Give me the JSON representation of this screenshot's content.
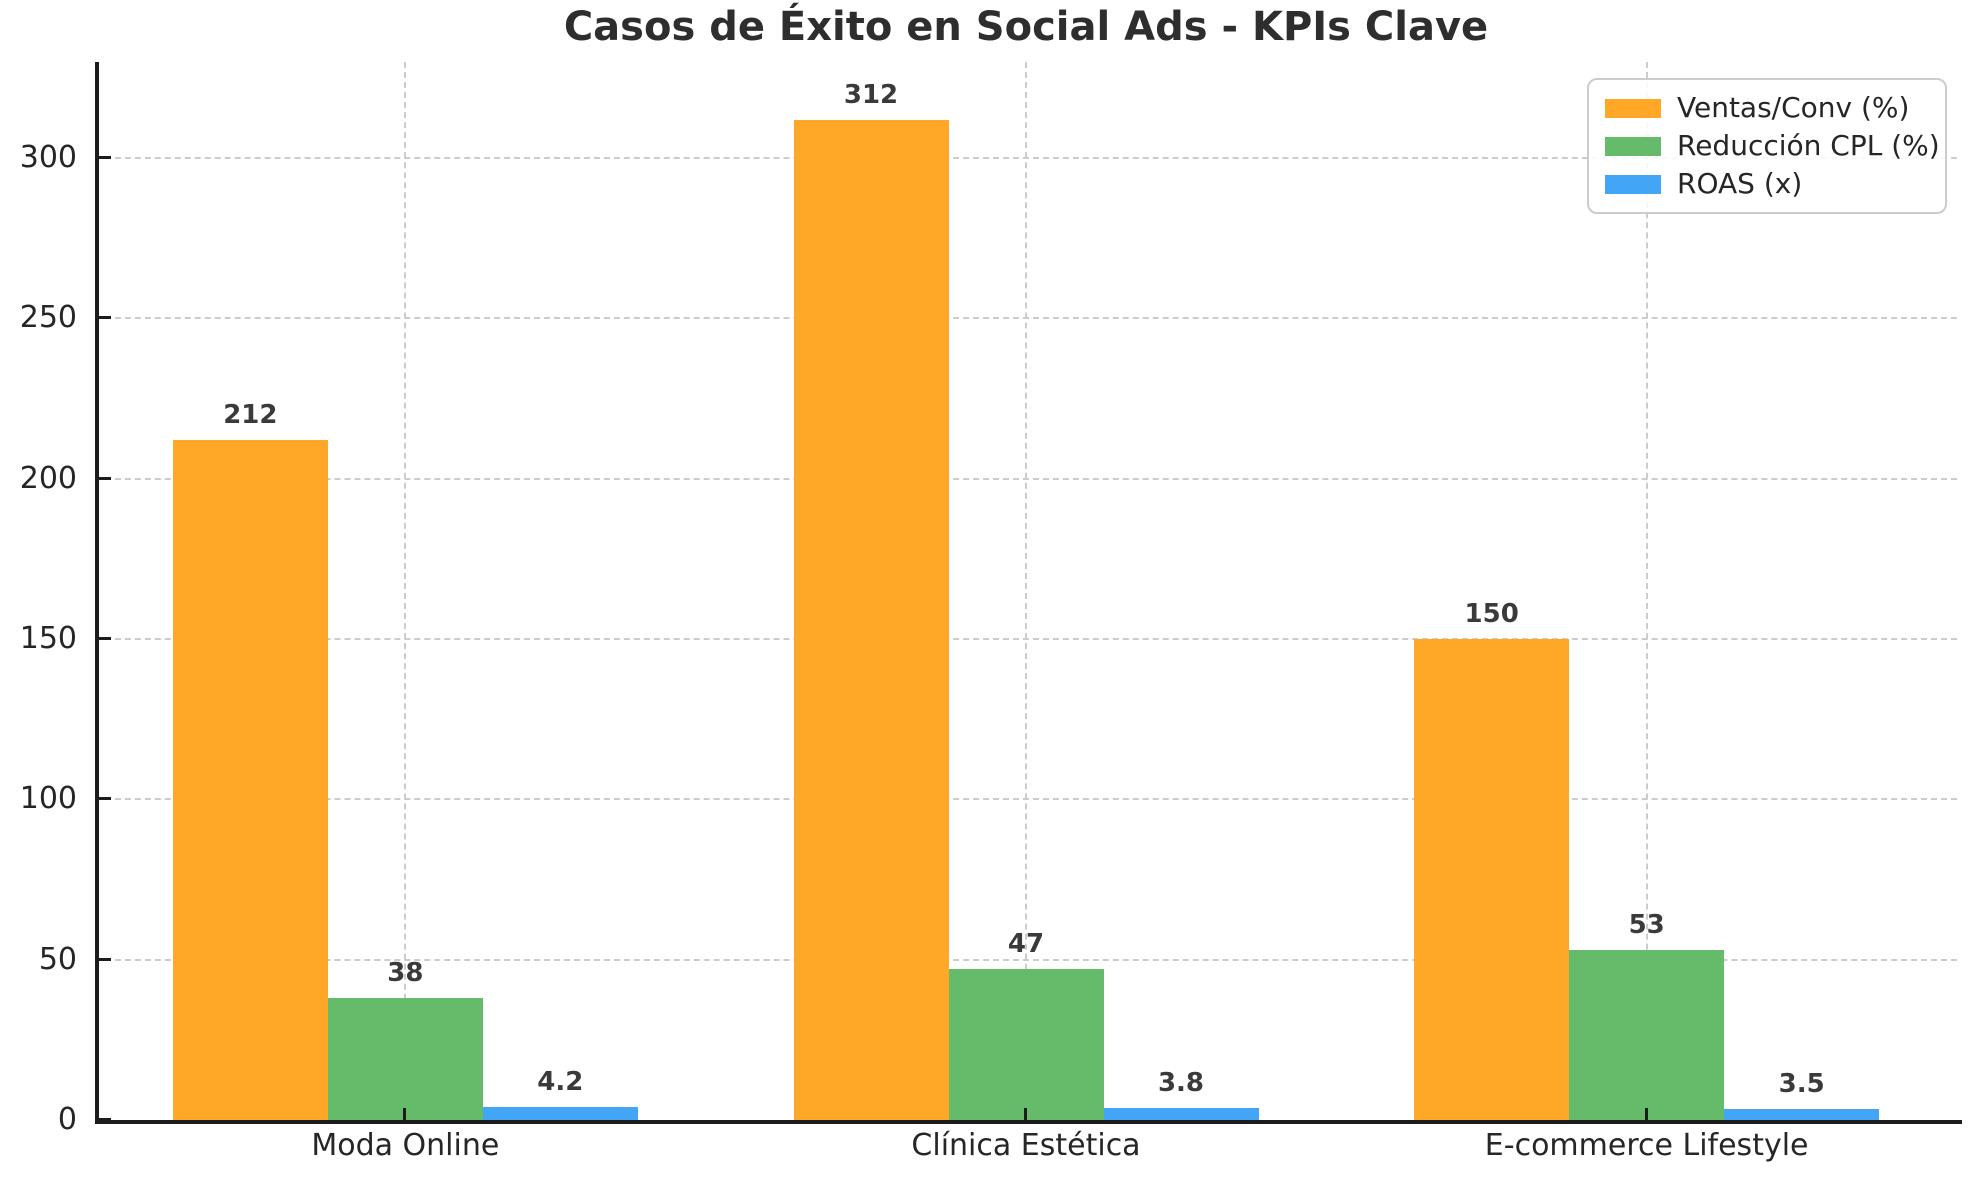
{
  "chart_data": {
    "type": "bar",
    "title": "Casos de Éxito en Social Ads - KPIs Clave",
    "categories": [
      "Moda Online",
      "Clínica Estética",
      "E-commerce Lifestyle"
    ],
    "series": [
      {
        "name": "Ventas/Conv (%)",
        "color": "#FFA726",
        "values": [
          212,
          312,
          150
        ]
      },
      {
        "name": "Reducción CPL (%)",
        "color": "#66BB6A",
        "values": [
          38,
          47,
          53
        ]
      },
      {
        "name": "ROAS (x)",
        "color": "#42A5F5",
        "values": [
          4.2,
          3.8,
          3.5
        ]
      }
    ],
    "xlabel": "",
    "ylabel": "",
    "ylim": [
      0,
      330
    ],
    "yticks": [
      0,
      50,
      100,
      150,
      200,
      250,
      300
    ],
    "grid": true,
    "grid_style": "dashed",
    "legend_position": "upper right",
    "bar_value_labels": true
  },
  "colors": {
    "background": "#ffffff",
    "axis": "#1c1c1c",
    "grid": "#cccccc",
    "tick_text": "#262626",
    "value_text": "#3a3a3a",
    "legend_border": "#cccccc"
  }
}
